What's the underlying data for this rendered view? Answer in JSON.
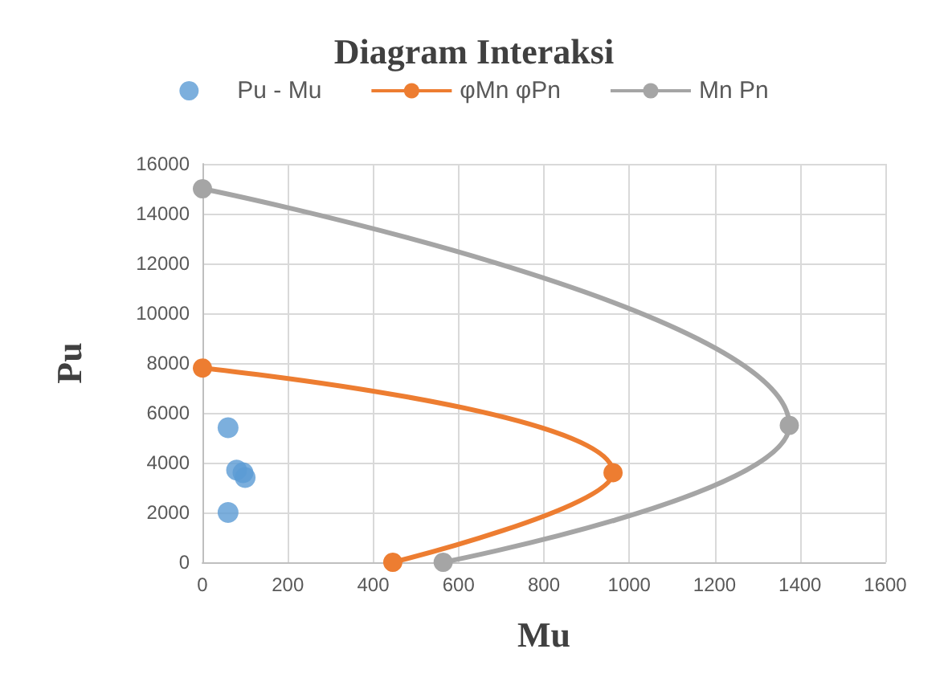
{
  "chart_data": {
    "type": "scatter",
    "title": "Diagram Interaksi",
    "xlabel": "Mu",
    "ylabel": "Pu",
    "xlim": [
      0,
      1600
    ],
    "xticks": [
      0,
      200,
      400,
      600,
      800,
      1000,
      1200,
      1400,
      1600
    ],
    "ylim": [
      0,
      16000
    ],
    "yticks": [
      0,
      2000,
      4000,
      6000,
      8000,
      10000,
      12000,
      14000,
      16000
    ],
    "grid": true,
    "legend": "top",
    "marker": "circle",
    "series": [
      {
        "name": "Pu - Mu",
        "color": "#5b9bd5",
        "x": [
          60,
          60,
          80,
          100,
          95
        ],
        "values": [
          2000,
          5400,
          3700,
          3400,
          3600
        ]
      },
      {
        "name": "φMn φPn",
        "type": "line",
        "color": "#ed7d31",
        "x": [
          0,
          962,
          446
        ],
        "values": [
          7800,
          3600,
          0
        ]
      },
      {
        "name": "Mn Pn",
        "type": "line",
        "color": "#a5a5a5",
        "x": [
          0,
          1375,
          564
        ],
        "values": [
          15000,
          5500,
          0
        ]
      }
    ]
  }
}
